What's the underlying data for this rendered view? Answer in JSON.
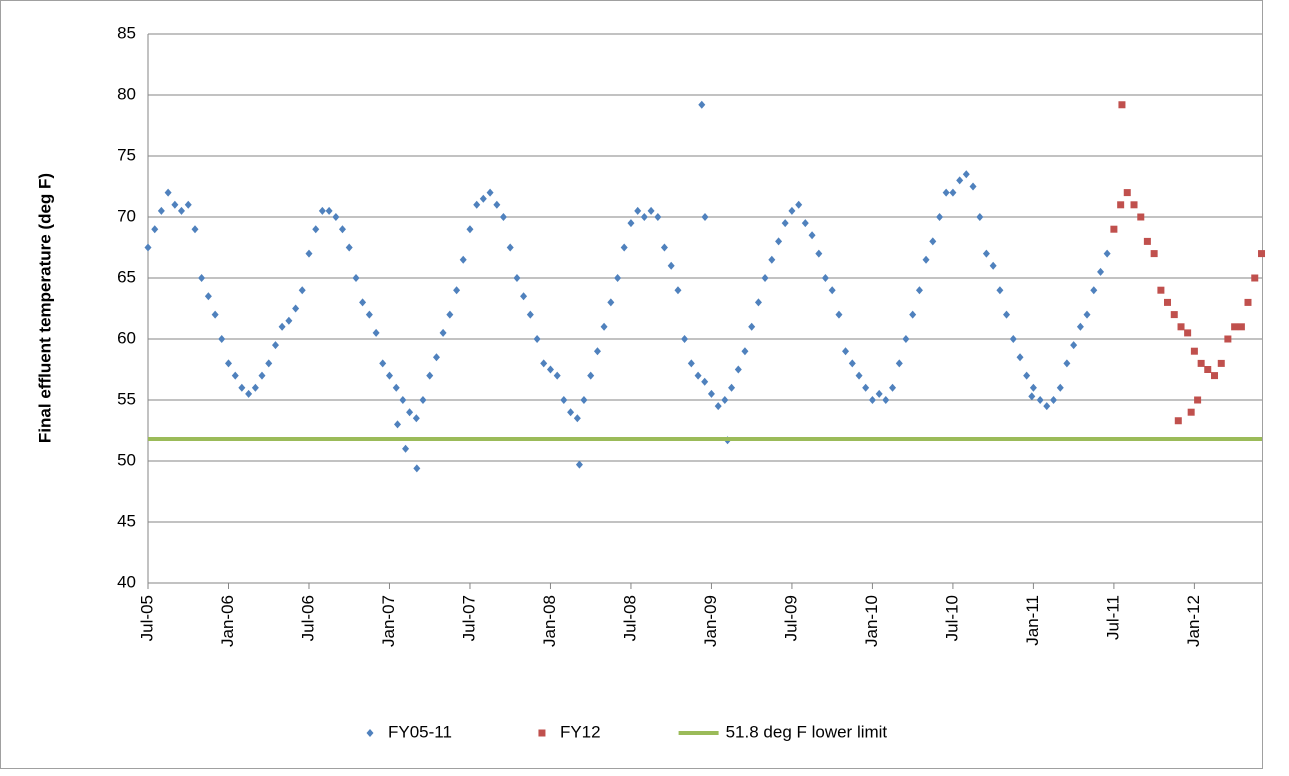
{
  "chart_data": {
    "type": "scatter",
    "y_label": "Final effluent temperature (deg F)",
    "xlim": [
      2005.5,
      2012.42
    ],
    "xticks": [
      {
        "value": 2005.5,
        "label": "Jul-05"
      },
      {
        "value": 2006.0,
        "label": "Jan-06"
      },
      {
        "value": 2006.5,
        "label": "Jul-06"
      },
      {
        "value": 2007.0,
        "label": "Jan-07"
      },
      {
        "value": 2007.5,
        "label": "Jul-07"
      },
      {
        "value": 2008.0,
        "label": "Jan-08"
      },
      {
        "value": 2008.5,
        "label": "Jul-08"
      },
      {
        "value": 2009.0,
        "label": "Jan-09"
      },
      {
        "value": 2009.5,
        "label": "Jul-09"
      },
      {
        "value": 2010.0,
        "label": "Jan-10"
      },
      {
        "value": 2010.5,
        "label": "Jul-10"
      },
      {
        "value": 2011.0,
        "label": "Jan-11"
      },
      {
        "value": 2011.5,
        "label": "Jul-11"
      },
      {
        "value": 2012.0,
        "label": "Jan-12"
      }
    ],
    "ylim": [
      40,
      85
    ],
    "yticks": [
      40,
      45,
      50,
      55,
      60,
      65,
      70,
      75,
      80,
      85
    ],
    "grid": true,
    "legend": "bottom",
    "series": [
      {
        "name": "FY05-11",
        "color": "#4f81bd",
        "marker": "diamond",
        "x": [
          2005.5,
          2005.542,
          2005.583,
          2005.625,
          2005.667,
          2005.708,
          2005.75,
          2005.792,
          2005.833,
          2005.875,
          2005.917,
          2005.958,
          2006,
          2006.042,
          2006.083,
          2006.125,
          2006.167,
          2006.208,
          2006.25,
          2006.292,
          2006.333,
          2006.375,
          2006.417,
          2006.458,
          2006.5,
          2006.542,
          2006.583,
          2006.625,
          2006.667,
          2006.708,
          2006.75,
          2006.792,
          2006.833,
          2006.875,
          2006.917,
          2006.958,
          2007,
          2007.042,
          2007.083,
          2007.125,
          2007.167,
          2007.208,
          2007.25,
          2007.292,
          2007.333,
          2007.375,
          2007.417,
          2007.458,
          2007.5,
          2007.542,
          2007.583,
          2007.625,
          2007.667,
          2007.708,
          2007.75,
          2007.792,
          2007.833,
          2007.875,
          2007.917,
          2007.958,
          2008,
          2008.042,
          2008.083,
          2008.125,
          2008.167,
          2008.208,
          2008.25,
          2008.292,
          2008.333,
          2008.375,
          2008.417,
          2008.458,
          2008.5,
          2008.542,
          2008.583,
          2008.625,
          2008.667,
          2008.708,
          2008.75,
          2008.792,
          2008.833,
          2008.875,
          2008.917,
          2008.958,
          2009,
          2009.042,
          2009.083,
          2009.125,
          2009.167,
          2009.208,
          2009.25,
          2009.292,
          2009.333,
          2009.375,
          2009.417,
          2009.458,
          2009.5,
          2009.542,
          2009.583,
          2009.625,
          2009.667,
          2009.708,
          2009.75,
          2009.792,
          2009.833,
          2009.875,
          2009.917,
          2009.958,
          2010,
          2010.042,
          2010.083,
          2010.125,
          2010.167,
          2010.208,
          2010.25,
          2010.292,
          2010.333,
          2010.375,
          2010.417,
          2010.458,
          2010.5,
          2010.542,
          2010.583,
          2010.625,
          2010.667,
          2010.708,
          2010.75,
          2010.792,
          2010.833,
          2010.875,
          2010.917,
          2010.958,
          2011,
          2011.042,
          2011.083,
          2011.125,
          2011.167,
          2011.208,
          2011.25,
          2011.292,
          2011.333,
          2011.375,
          2011.417,
          2011.458,
          2008.94,
          2008.96,
          2007.17,
          2008.18,
          2010.99,
          2007.1,
          2007.05,
          2009.1
        ],
        "values": [
          67.5,
          69,
          70.5,
          72,
          71,
          70.5,
          71,
          69,
          65,
          63.5,
          62,
          60,
          58,
          57,
          56,
          55.5,
          56,
          57,
          58,
          59.5,
          61,
          61.5,
          62.5,
          64,
          67,
          69,
          70.5,
          70.5,
          70,
          69,
          67.5,
          65,
          63,
          62,
          60.5,
          58,
          57,
          56,
          55,
          54,
          53.5,
          55,
          57,
          58.5,
          60.5,
          62,
          64,
          66.5,
          69,
          71,
          71.5,
          72,
          71,
          70,
          67.5,
          65,
          63.5,
          62,
          60,
          58,
          57.5,
          57,
          55,
          54,
          53.5,
          55,
          57,
          59,
          61,
          63,
          65,
          67.5,
          69.5,
          70.5,
          70,
          70.5,
          70,
          67.5,
          66,
          64,
          60,
          58,
          57,
          56.5,
          55.5,
          54.5,
          55,
          56,
          57.5,
          59,
          61,
          63,
          65,
          66.5,
          68,
          69.5,
          70.5,
          71,
          69.5,
          68.5,
          67,
          65,
          64,
          62,
          59,
          58,
          57,
          56,
          55,
          55.5,
          55,
          56,
          58,
          60,
          62,
          64,
          66.5,
          68,
          70,
          72,
          72,
          73,
          73.5,
          72.5,
          70,
          67,
          66,
          64,
          62,
          60,
          58.5,
          57,
          56,
          55,
          54.5,
          55,
          56,
          58,
          59.5,
          61,
          62,
          64,
          65.5,
          67,
          79.2,
          70,
          49.4,
          49.7,
          55.3,
          51,
          53,
          51.7
        ]
      },
      {
        "name": "FY12",
        "color": "#c0504d",
        "marker": "square",
        "x": [
          2011.5,
          2011.542,
          2011.583,
          2011.625,
          2011.667,
          2011.708,
          2011.75,
          2011.792,
          2011.833,
          2011.875,
          2011.917,
          2011.958,
          2012,
          2012.042,
          2012.083,
          2012.125,
          2012.167,
          2012.208,
          2012.25,
          2012.292,
          2012.333,
          2012.375,
          2012.417,
          2011.55,
          2011.98,
          2012.02,
          2011.9
        ],
        "values": [
          69,
          71,
          72,
          71,
          70,
          68,
          67,
          64,
          63,
          62,
          61,
          60.5,
          59,
          58,
          57.5,
          57,
          58,
          60,
          61,
          61,
          63,
          65,
          67,
          79.2,
          54,
          55,
          53.3
        ]
      }
    ],
    "reference_lines": [
      {
        "name": "51.8 deg F lower limit",
        "value": 51.8,
        "color": "#9bbb59"
      }
    ]
  }
}
